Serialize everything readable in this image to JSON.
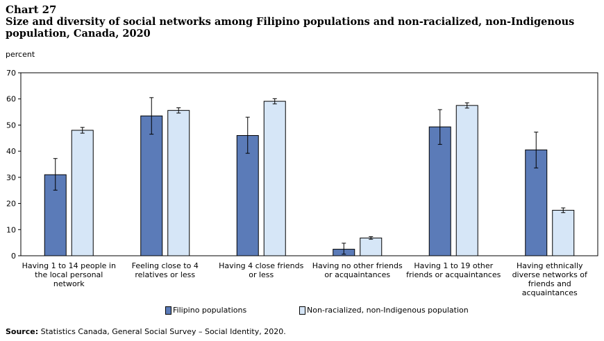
{
  "chart_number": "Chart 27",
  "title": "Size and diversity of social networks among Filipino populations and non-racialized, non-Indigenous population, Canada, 2020",
  "source": {
    "label": "Source:",
    "text": "Statistics Canada, General Social Survey – Social Identity, 2020."
  },
  "colors": {
    "filipino": "#5b7bb8",
    "non_racialized": "#d6e6f7"
  },
  "chart_data": {
    "type": "bar",
    "ylabel": "percent",
    "ylim": [
      0,
      70
    ],
    "yticks": [
      0,
      10,
      20,
      30,
      40,
      50,
      60,
      70
    ],
    "grid": false,
    "legend_position": "bottom",
    "categories": [
      [
        "Having 1 to 14 people in",
        "the local personal",
        "network"
      ],
      [
        "Feeling close to 4",
        "relatives or less"
      ],
      [
        "Having 4 close friends",
        "or less"
      ],
      [
        "Having no other friends",
        "or acquaintances"
      ],
      [
        "Having 1 to 19 other",
        "friends or acquaintances"
      ],
      [
        "Having ethnically",
        "diverse networks of",
        "friends and",
        "acquaintances"
      ]
    ],
    "series": [
      {
        "name": "Filipino populations",
        "values": [
          31,
          53.5,
          46,
          2.5,
          49.3,
          40.5
        ],
        "error_low": [
          25.1,
          46.5,
          39.2,
          0.6,
          42.6,
          33.6
        ],
        "error_high": [
          37.2,
          60.5,
          53,
          4.8,
          55.9,
          47.3
        ]
      },
      {
        "name": "Non-racialized, non-Indigenous population",
        "values": [
          48,
          55.6,
          59.1,
          6.8,
          57.5,
          17.4
        ],
        "error_low": [
          46.9,
          54.6,
          58.1,
          6.3,
          56.5,
          16.5
        ],
        "error_high": [
          49.1,
          56.6,
          60.1,
          7.3,
          58.5,
          18.3
        ]
      }
    ]
  }
}
